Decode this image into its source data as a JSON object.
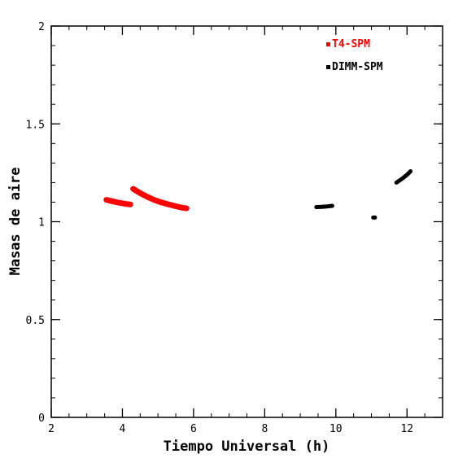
{
  "chart_data": {
    "type": "scatter",
    "title": "",
    "xlabel": "Tiempo Universal (h)",
    "ylabel": "Masas de aire",
    "xlim": [
      2,
      13
    ],
    "ylim": [
      0,
      2
    ],
    "xticks": [
      "2",
      "4",
      "6",
      "8",
      "10",
      "12"
    ],
    "yticks": [
      "0",
      "0.5",
      "1",
      "1.5",
      "2"
    ],
    "xtick_values": [
      2,
      4,
      6,
      8,
      10,
      12
    ],
    "ytick_values": [
      0,
      0.5,
      1,
      1.5,
      2
    ],
    "grid": false,
    "legend_position": "top-right",
    "series": [
      {
        "name": "T4-SPM",
        "color": "#ff0000",
        "segments": [
          {
            "x": [
              3.55,
              3.7,
              3.85,
              4.0,
              4.15,
              4.22
            ],
            "y": [
              1.112,
              1.105,
              1.099,
              1.094,
              1.09,
              1.088
            ]
          },
          {
            "x": [
              4.3,
              4.5,
              4.7,
              4.9,
              5.1,
              5.3,
              5.5,
              5.7,
              5.8
            ],
            "y": [
              1.168,
              1.146,
              1.127,
              1.111,
              1.098,
              1.088,
              1.079,
              1.071,
              1.068
            ]
          }
        ]
      },
      {
        "name": "DIMM-SPM",
        "color": "#000000",
        "segments": [
          {
            "x": [
              9.45,
              9.6,
              9.75,
              9.9
            ],
            "y": [
              1.075,
              1.076,
              1.078,
              1.081
            ]
          },
          {
            "x": [
              11.05,
              11.1
            ],
            "y": [
              1.021,
              1.021
            ]
          },
          {
            "x": [
              11.7,
              11.85,
              12.0,
              12.1
            ],
            "y": [
              1.2,
              1.218,
              1.24,
              1.258
            ]
          }
        ]
      }
    ]
  }
}
